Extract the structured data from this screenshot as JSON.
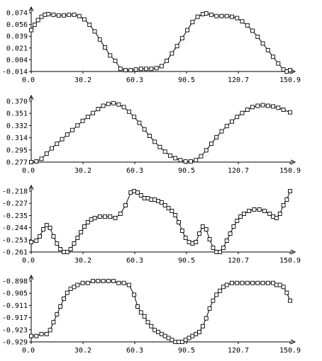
{
  "chart_data": [
    {
      "type": "line",
      "title": "",
      "xlabel": "",
      "ylabel": "",
      "x_ticks": [
        "0.0",
        "30.2",
        "60.3",
        "90.5",
        "120.7",
        "150.9"
      ],
      "y_ticks": [
        "0.074",
        "0.056",
        "0.039",
        "0.021",
        "0.004",
        "-0.014"
      ],
      "xlim": [
        0,
        150.9
      ],
      "ylim": [
        -0.014,
        0.074
      ],
      "series": [
        {
          "points": [
            [
              0,
              0.048
            ],
            [
              2,
              0.056
            ],
            [
              4,
              0.063
            ],
            [
              6,
              0.068
            ],
            [
              8,
              0.071
            ],
            [
              10,
              0.072
            ],
            [
              13,
              0.071
            ],
            [
              16,
              0.07
            ],
            [
              19,
              0.07
            ],
            [
              22,
              0.071
            ],
            [
              25,
              0.071
            ],
            [
              28,
              0.069
            ],
            [
              31,
              0.064
            ],
            [
              34,
              0.056
            ],
            [
              37,
              0.046
            ],
            [
              40,
              0.034
            ],
            [
              43,
              0.022
            ],
            [
              46,
              0.01
            ],
            [
              49,
              0.002
            ],
            [
              52,
              -0.01
            ],
            [
              55,
              -0.012
            ],
            [
              58,
              -0.012
            ],
            [
              61,
              -0.011
            ],
            [
              64,
              -0.01
            ],
            [
              67,
              -0.01
            ],
            [
              70,
              -0.01
            ],
            [
              73,
              -0.009
            ],
            [
              76,
              -0.006
            ],
            [
              79,
              0.002
            ],
            [
              82,
              0.013
            ],
            [
              85,
              0.024
            ],
            [
              88,
              0.036
            ],
            [
              91,
              0.048
            ],
            [
              94,
              0.06
            ],
            [
              97,
              0.068
            ],
            [
              100,
              0.072
            ],
            [
              102,
              0.073
            ],
            [
              105,
              0.071
            ],
            [
              108,
              0.069
            ],
            [
              111,
              0.069
            ],
            [
              114,
              0.069
            ],
            [
              117,
              0.068
            ],
            [
              120,
              0.066
            ],
            [
              123,
              0.061
            ],
            [
              126,
              0.055
            ],
            [
              129,
              0.047
            ],
            [
              132,
              0.038
            ],
            [
              135,
              0.028
            ],
            [
              138,
              0.018
            ],
            [
              141,
              0.008
            ],
            [
              144,
              -0.002
            ],
            [
              147,
              -0.011
            ],
            [
              149,
              -0.014
            ],
            [
              150.9,
              -0.012
            ]
          ]
        }
      ]
    },
    {
      "type": "line",
      "title": "",
      "xlabel": "",
      "ylabel": "",
      "x_ticks": [
        "0.0",
        "30.2",
        "60.3",
        "90.5",
        "120.7",
        "150.9"
      ],
      "y_ticks": [
        "0.370",
        "0.351",
        "0.332",
        "0.314",
        "0.295",
        "0.277"
      ],
      "xlim": [
        0,
        150.9
      ],
      "ylim": [
        0.277,
        0.37
      ],
      "series": [
        {
          "points": [
            [
              0,
              0.277
            ],
            [
              3,
              0.278
            ],
            [
              6,
              0.282
            ],
            [
              9,
              0.29
            ],
            [
              12,
              0.298
            ],
            [
              15,
              0.305
            ],
            [
              18,
              0.312
            ],
            [
              21,
              0.319
            ],
            [
              24,
              0.326
            ],
            [
              27,
              0.333
            ],
            [
              30,
              0.34
            ],
            [
              33,
              0.346
            ],
            [
              36,
              0.352
            ],
            [
              39,
              0.358
            ],
            [
              42,
              0.363
            ],
            [
              45,
              0.366
            ],
            [
              48,
              0.367
            ],
            [
              51,
              0.365
            ],
            [
              54,
              0.361
            ],
            [
              57,
              0.354
            ],
            [
              60,
              0.346
            ],
            [
              63,
              0.337
            ],
            [
              66,
              0.327
            ],
            [
              69,
              0.317
            ],
            [
              72,
              0.308
            ],
            [
              75,
              0.3
            ],
            [
              78,
              0.293
            ],
            [
              81,
              0.287
            ],
            [
              84,
              0.283
            ],
            [
              87,
              0.28
            ],
            [
              90,
              0.278
            ],
            [
              93,
              0.278
            ],
            [
              96,
              0.28
            ],
            [
              99,
              0.286
            ],
            [
              102,
              0.295
            ],
            [
              105,
              0.305
            ],
            [
              108,
              0.315
            ],
            [
              111,
              0.324
            ],
            [
              114,
              0.332
            ],
            [
              117,
              0.339
            ],
            [
              120,
              0.346
            ],
            [
              123,
              0.352
            ],
            [
              126,
              0.357
            ],
            [
              129,
              0.361
            ],
            [
              132,
              0.363
            ],
            [
              135,
              0.364
            ],
            [
              138,
              0.363
            ],
            [
              141,
              0.362
            ],
            [
              144,
              0.36
            ],
            [
              147,
              0.357
            ],
            [
              150.9,
              0.353
            ]
          ]
        }
      ]
    },
    {
      "type": "line",
      "title": "",
      "xlabel": "",
      "ylabel": "",
      "x_ticks": [
        "0.0",
        "30.2",
        "60.3",
        "90.5",
        "120.7",
        "150.9"
      ],
      "y_ticks": [
        "-0.218",
        "-0.227",
        "-0.235",
        "-0.244",
        "-0.253",
        "-0.261"
      ],
      "xlim": [
        0,
        150.9
      ],
      "ylim": [
        -0.261,
        -0.218
      ],
      "series": [
        {
          "points": [
            [
              0,
              -0.254
            ],
            [
              3,
              -0.253
            ],
            [
              5,
              -0.25
            ],
            [
              7,
              -0.245
            ],
            [
              9,
              -0.242
            ],
            [
              11,
              -0.244
            ],
            [
              13,
              -0.25
            ],
            [
              15,
              -0.255
            ],
            [
              17,
              -0.259
            ],
            [
              19,
              -0.261
            ],
            [
              21,
              -0.261
            ],
            [
              23,
              -0.259
            ],
            [
              25,
              -0.255
            ],
            [
              27,
              -0.251
            ],
            [
              29,
              -0.247
            ],
            [
              31,
              -0.243
            ],
            [
              33,
              -0.24
            ],
            [
              35,
              -0.238
            ],
            [
              37,
              -0.237
            ],
            [
              40,
              -0.236
            ],
            [
              43,
              -0.236
            ],
            [
              46,
              -0.236
            ],
            [
              49,
              -0.237
            ],
            [
              52,
              -0.234
            ],
            [
              55,
              -0.228
            ],
            [
              58,
              -0.219
            ],
            [
              60,
              -0.218
            ],
            [
              62,
              -0.219
            ],
            [
              64,
              -0.221
            ],
            [
              66,
              -0.223
            ],
            [
              68,
              -0.223
            ],
            [
              70,
              -0.224
            ],
            [
              72,
              -0.224
            ],
            [
              74,
              -0.225
            ],
            [
              76,
              -0.226
            ],
            [
              78,
              -0.228
            ],
            [
              80,
              -0.23
            ],
            [
              82,
              -0.232
            ],
            [
              84,
              -0.235
            ],
            [
              86,
              -0.24
            ],
            [
              88,
              -0.246
            ],
            [
              90,
              -0.251
            ],
            [
              92,
              -0.254
            ],
            [
              94,
              -0.255
            ],
            [
              96,
              -0.254
            ],
            [
              98,
              -0.248
            ],
            [
              100,
              -0.243
            ],
            [
              102,
              -0.245
            ],
            [
              104,
              -0.252
            ],
            [
              106,
              -0.258
            ],
            [
              108,
              -0.261
            ],
            [
              110,
              -0.261
            ],
            [
              112,
              -0.258
            ],
            [
              114,
              -0.253
            ],
            [
              116,
              -0.248
            ],
            [
              118,
              -0.243
            ],
            [
              120,
              -0.239
            ],
            [
              122,
              -0.236
            ],
            [
              124,
              -0.234
            ],
            [
              127,
              -0.232
            ],
            [
              130,
              -0.231
            ],
            [
              133,
              -0.231
            ],
            [
              136,
              -0.232
            ],
            [
              139,
              -0.234
            ],
            [
              141,
              -0.236
            ],
            [
              143,
              -0.237
            ],
            [
              145,
              -0.234
            ],
            [
              147,
              -0.228
            ],
            [
              149,
              -0.224
            ],
            [
              150.9,
              -0.218
            ]
          ]
        }
      ]
    },
    {
      "type": "line",
      "title": "",
      "xlabel": "",
      "ylabel": "",
      "x_ticks": [
        "0.0",
        "30.2",
        "60.3",
        "90.5",
        "120.7",
        "150.9"
      ],
      "y_ticks": [
        "-0.898",
        "-0.905",
        "-0.911",
        "-0.917",
        "-0.923",
        "-0.929"
      ],
      "xlim": [
        0,
        150.9
      ],
      "ylim": [
        -0.929,
        -0.898
      ],
      "series": [
        {
          "points": [
            [
              0,
              -0.926
            ],
            [
              3,
              -0.926
            ],
            [
              6,
              -0.925
            ],
            [
              9,
              -0.925
            ],
            [
              11,
              -0.923
            ],
            [
              13,
              -0.919
            ],
            [
              15,
              -0.915
            ],
            [
              17,
              -0.911
            ],
            [
              19,
              -0.907
            ],
            [
              21,
              -0.904
            ],
            [
              23,
              -0.902
            ],
            [
              25,
              -0.901
            ],
            [
              27,
              -0.9
            ],
            [
              30,
              -0.899
            ],
            [
              33,
              -0.899
            ],
            [
              36,
              -0.898
            ],
            [
              39,
              -0.898
            ],
            [
              42,
              -0.898
            ],
            [
              45,
              -0.898
            ],
            [
              48,
              -0.898
            ],
            [
              51,
              -0.899
            ],
            [
              54,
              -0.899
            ],
            [
              57,
              -0.9
            ],
            [
              60,
              -0.905
            ],
            [
              62,
              -0.911
            ],
            [
              64,
              -0.914
            ],
            [
              66,
              -0.916
            ],
            [
              68,
              -0.919
            ],
            [
              70,
              -0.921
            ],
            [
              72,
              -0.923
            ],
            [
              74,
              -0.924
            ],
            [
              76,
              -0.925
            ],
            [
              78,
              -0.926
            ],
            [
              80,
              -0.927
            ],
            [
              82,
              -0.928
            ],
            [
              84,
              -0.929
            ],
            [
              86,
              -0.929
            ],
            [
              88,
              -0.929
            ],
            [
              90,
              -0.928
            ],
            [
              92,
              -0.927
            ],
            [
              94,
              -0.926
            ],
            [
              96,
              -0.925
            ],
            [
              98,
              -0.924
            ],
            [
              100,
              -0.921
            ],
            [
              102,
              -0.917
            ],
            [
              104,
              -0.912
            ],
            [
              106,
              -0.908
            ],
            [
              108,
              -0.905
            ],
            [
              110,
              -0.903
            ],
            [
              112,
              -0.901
            ],
            [
              114,
              -0.9
            ],
            [
              117,
              -0.899
            ],
            [
              120,
              -0.899
            ],
            [
              123,
              -0.899
            ],
            [
              126,
              -0.899
            ],
            [
              129,
              -0.899
            ],
            [
              132,
              -0.899
            ],
            [
              135,
              -0.899
            ],
            [
              138,
              -0.899
            ],
            [
              141,
              -0.899
            ],
            [
              143,
              -0.9
            ],
            [
              145,
              -0.9
            ],
            [
              147,
              -0.901
            ],
            [
              149,
              -0.904
            ],
            [
              150.9,
              -0.908
            ]
          ]
        }
      ]
    }
  ]
}
